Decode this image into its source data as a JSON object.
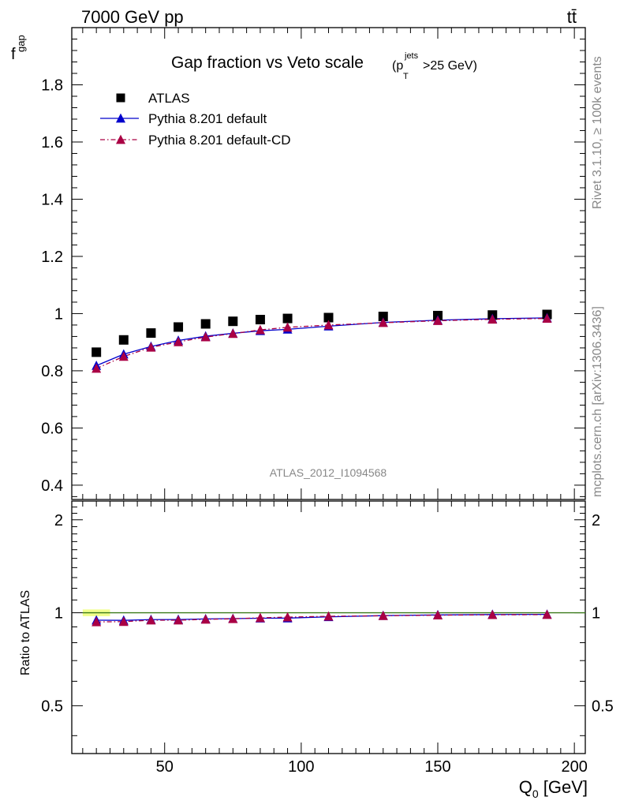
{
  "header": {
    "left": "7000 GeV pp",
    "right": "tt̄"
  },
  "side_text": {
    "top": "Rivet 3.1.10, ≥ 100k events",
    "bottom": "mcplots.cern.ch [arXiv:1306.3436]"
  },
  "watermark": "ATLAS_2012_I1094568",
  "chart_data": [
    {
      "type": "scatter",
      "panel": "main",
      "title": "Gap fraction vs Veto scale",
      "title_suffix": {
        "pre": "(p",
        "sub": "T",
        "sup": "jets",
        "post": ">25 GeV)"
      },
      "ylabel": {
        "main": "f",
        "sub": "gap"
      },
      "xlim": [
        16,
        204
      ],
      "ylim": [
        0.35,
        2.0
      ],
      "yticks": [
        0.4,
        0.6,
        0.8,
        1.0,
        1.2,
        1.4,
        1.6,
        1.8
      ],
      "ytick_labels": [
        "0.4",
        "0.6",
        "0.8",
        "1",
        "1.2",
        "1.4",
        "1.6",
        "1.8"
      ],
      "legend_position": "top-left",
      "x": [
        25,
        35,
        45,
        55,
        65,
        75,
        85,
        95,
        110,
        130,
        150,
        170,
        190
      ],
      "series": [
        {
          "name": "ATLAS",
          "style": "marker-square",
          "color": "#000000",
          "values": [
            0.865,
            0.908,
            0.932,
            0.953,
            0.964,
            0.973,
            0.979,
            0.983,
            0.986,
            0.99,
            0.993,
            0.995,
            0.997
          ]
        },
        {
          "name": "Pythia 8.201 default",
          "style": "line-triangle",
          "color": "#0000cc",
          "values": [
            0.818,
            0.858,
            0.885,
            0.906,
            0.921,
            0.931,
            0.94,
            0.945,
            0.956,
            0.969,
            0.977,
            0.982,
            0.985
          ]
        },
        {
          "name": "Pythia 8.201 default-CD",
          "style": "dashdot-triangle",
          "color": "#aa0044",
          "values": [
            0.808,
            0.85,
            0.882,
            0.901,
            0.918,
            0.93,
            0.943,
            0.952,
            0.96,
            0.968,
            0.975,
            0.98,
            0.983
          ]
        }
      ]
    },
    {
      "type": "scatter",
      "panel": "ratio",
      "ylabel": "Ratio to ATLAS",
      "xlabel": {
        "main": "Q",
        "sub": "0",
        "unit": " [GeV]"
      },
      "xlim": [
        16,
        204
      ],
      "ylim": [
        0.35,
        2.3
      ],
      "yticks": [
        0.5,
        1,
        2
      ],
      "ytick_labels": [
        "0.5",
        "1",
        "2"
      ],
      "xticks": [
        50,
        100,
        150,
        200
      ],
      "xtick_labels": [
        "50",
        "100",
        "150",
        "200"
      ],
      "x": [
        25,
        35,
        45,
        55,
        65,
        75,
        85,
        95,
        110,
        130,
        150,
        170,
        190
      ],
      "band": {
        "name": "ATLAS uncertainty",
        "x_range": [
          20,
          30
        ],
        "half_width": 0.025,
        "color": "#eeff77"
      },
      "series": [
        {
          "name": "Pythia 8.201 default",
          "style": "line-triangle",
          "color": "#0000cc",
          "values": [
            0.946,
            0.945,
            0.95,
            0.951,
            0.955,
            0.957,
            0.96,
            0.961,
            0.97,
            0.979,
            0.984,
            0.987,
            0.988
          ]
        },
        {
          "name": "Pythia 8.201 default-CD",
          "style": "dashdot-triangle",
          "color": "#aa0044",
          "values": [
            0.934,
            0.936,
            0.946,
            0.946,
            0.952,
            0.956,
            0.963,
            0.968,
            0.974,
            0.978,
            0.982,
            0.985,
            0.986
          ]
        }
      ]
    }
  ]
}
